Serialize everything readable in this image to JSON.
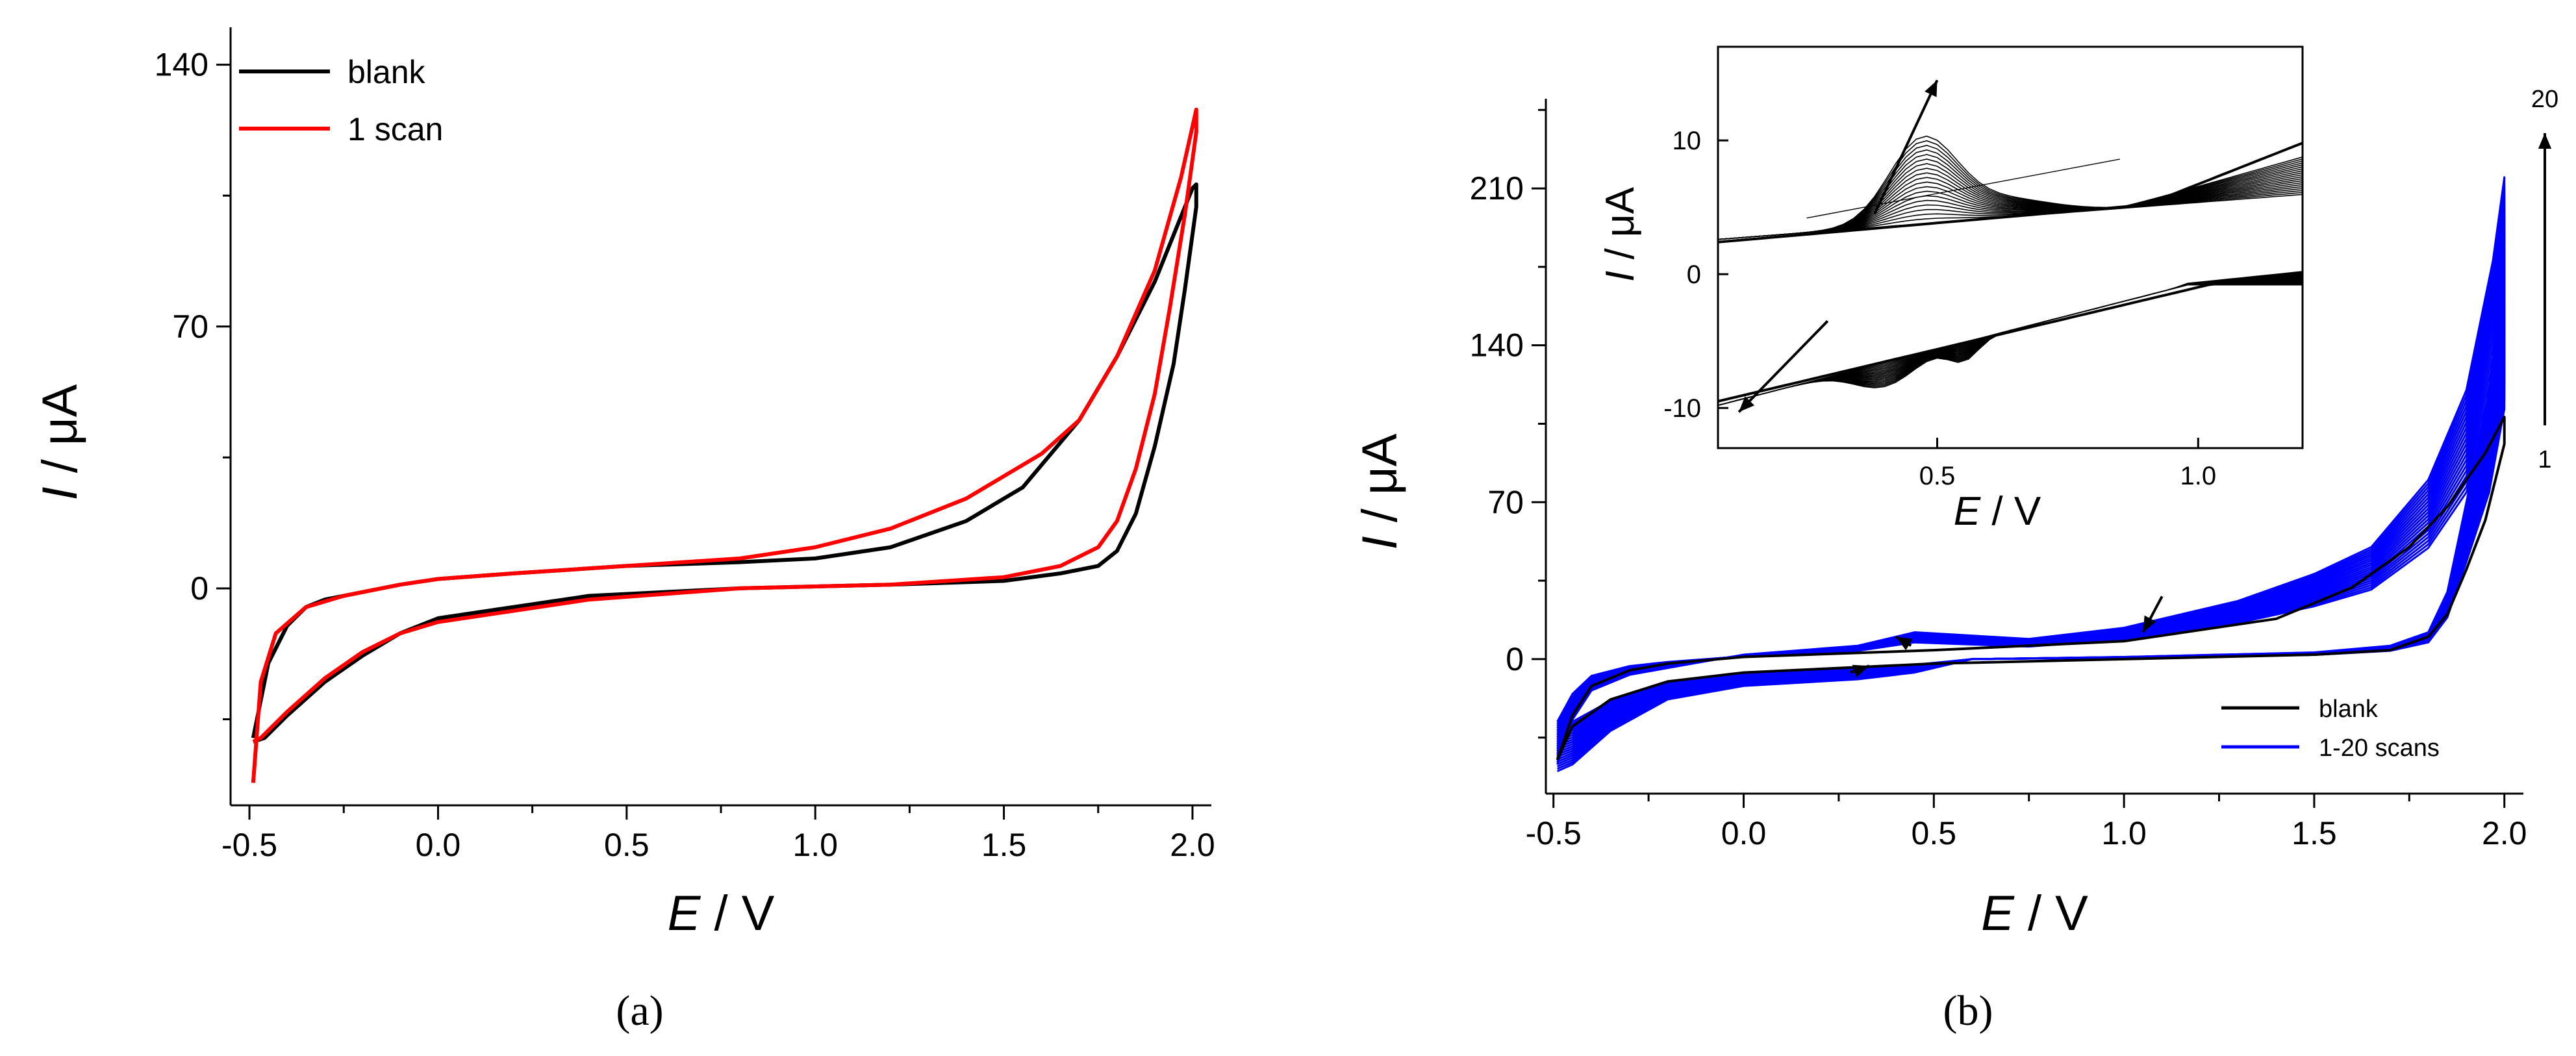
{
  "chart_data": [
    {
      "type": "line",
      "panel_label": "(a)",
      "xlabel_var": "E",
      "xlabel_unit": " / V",
      "ylabel_var": "I",
      "ylabel_unit": " / μA",
      "xlim": [
        -0.55,
        2.05
      ],
      "ylim": [
        -58,
        150
      ],
      "xticks": [
        -0.5,
        0.0,
        0.5,
        1.0,
        1.5,
        2.0
      ],
      "xtick_labels": [
        "-0.5",
        "0.0",
        "0.5",
        "1.0",
        "1.5",
        "2.0"
      ],
      "yticks": [
        0,
        70,
        140
      ],
      "ytick_labels": [
        "0",
        "70",
        "140"
      ],
      "legend_position": "top-left",
      "series": [
        {
          "name": "blank",
          "color": "#000000",
          "x": [
            -0.49,
            -0.45,
            -0.4,
            -0.35,
            -0.3,
            -0.2,
            -0.1,
            0.0,
            0.2,
            0.5,
            0.8,
            1.0,
            1.2,
            1.4,
            1.55,
            1.7,
            1.8,
            1.9,
            1.96,
            2.0,
            2.01,
            2.01,
            1.98,
            1.95,
            1.9,
            1.85,
            1.8,
            1.75,
            1.65,
            1.5,
            1.2,
            0.8,
            0.4,
            0.2,
            0.0,
            -0.1,
            -0.2,
            -0.3,
            -0.4,
            -0.46,
            -0.49
          ],
          "y": [
            -40,
            -20,
            -10,
            -5,
            -3,
            -1,
            1,
            2.5,
            4,
            6,
            7,
            8,
            11,
            18,
            27,
            45,
            62,
            82,
            97,
            107,
            108,
            102,
            80,
            60,
            38,
            20,
            10,
            6,
            4,
            2,
            1,
            0,
            -2,
            -5,
            -8,
            -12,
            -18,
            -25,
            -34,
            -40,
            -41
          ]
        },
        {
          "name": "1 scan",
          "color": "#ff0000",
          "x": [
            -0.49,
            -0.47,
            -0.43,
            -0.35,
            -0.25,
            -0.1,
            0.0,
            0.2,
            0.5,
            0.8,
            1.0,
            1.2,
            1.4,
            1.55,
            1.6,
            1.7,
            1.8,
            1.9,
            1.97,
            2.01,
            2.01,
            1.98,
            1.94,
            1.9,
            1.85,
            1.8,
            1.75,
            1.65,
            1.5,
            1.2,
            0.8,
            0.4,
            0.2,
            0.0,
            -0.1,
            -0.2,
            -0.3,
            -0.4,
            -0.47,
            -0.49
          ],
          "y": [
            -52,
            -25,
            -12,
            -5,
            -2,
            1,
            2.5,
            4,
            6,
            8,
            11,
            16,
            24,
            33,
            36,
            45,
            62,
            85,
            110,
            128,
            122,
            100,
            75,
            52,
            32,
            18,
            11,
            6,
            3,
            1,
            0,
            -3,
            -6,
            -9,
            -12,
            -17,
            -24,
            -33,
            -40,
            -41
          ]
        }
      ]
    },
    {
      "type": "line",
      "panel_label": "(b)",
      "xlabel_var": "E",
      "xlabel_unit": " / V",
      "ylabel_var": "I",
      "ylabel_unit": " / μA",
      "xlim": [
        -0.52,
        2.05
      ],
      "ylim": [
        -60,
        250
      ],
      "xticks": [
        -0.5,
        0.0,
        0.5,
        1.0,
        1.5,
        2.0
      ],
      "xtick_labels": [
        "-0.5",
        "0.0",
        "0.5",
        "1.0",
        "1.5",
        "2.0"
      ],
      "yticks": [
        0,
        70,
        140,
        210
      ],
      "ytick_labels": [
        "0",
        "70",
        "140",
        "210"
      ],
      "legend_position": "bottom-right",
      "scan_arrow_top": "20",
      "scan_arrow_bottom": "1",
      "series": [
        {
          "name": "blank",
          "color": "#000000",
          "x": [
            -0.49,
            -0.45,
            -0.4,
            -0.3,
            -0.2,
            0.0,
            0.5,
            1.0,
            1.4,
            1.6,
            1.75,
            1.85,
            1.95,
            2.0,
            2.0,
            1.95,
            1.9,
            1.85,
            1.8,
            1.7,
            1.5,
            1.0,
            0.5,
            0.0,
            -0.2,
            -0.35,
            -0.45,
            -0.49
          ],
          "y": [
            -45,
            -25,
            -12,
            -5,
            -2,
            1,
            4,
            8,
            18,
            32,
            50,
            68,
            92,
            108,
            96,
            62,
            40,
            20,
            10,
            4,
            2,
            0,
            -2,
            -6,
            -10,
            -18,
            -30,
            -45
          ]
        },
        {
          "name": "1-20 scans",
          "color": "#0000ff",
          "x": [
            -0.49,
            -0.45,
            -0.4,
            -0.3,
            -0.2,
            0.0,
            0.3,
            0.45,
            0.55,
            0.75,
            1.0,
            1.3,
            1.5,
            1.65,
            1.8,
            1.9,
            1.97,
            2.0,
            2.0,
            1.96,
            1.9,
            1.85,
            1.8,
            1.7,
            1.5,
            1.0,
            0.6,
            0.45,
            0.3,
            0.0,
            -0.2,
            -0.35,
            -0.45,
            -0.49
          ],
          "y": [
            -45,
            -25,
            -12,
            -5,
            -2,
            2,
            6,
            12,
            11,
            9,
            14,
            26,
            38,
            50,
            80,
            120,
            178,
            215,
            180,
            120,
            70,
            30,
            12,
            6,
            3,
            1,
            0,
            -4,
            -7,
            -10,
            -16,
            -30,
            -45,
            -48
          ]
        }
      ],
      "inset": {
        "xlabel_var": "E",
        "xlabel_unit": " / V",
        "ylabel_var": "I",
        "ylabel_unit": " / μA",
        "xlim": [
          0.08,
          1.2
        ],
        "ylim": [
          -13,
          17
        ],
        "xticks": [
          0.5,
          1.0
        ],
        "xtick_labels": [
          "0.5",
          "1.0"
        ],
        "yticks": [
          -10,
          0,
          10
        ],
        "ytick_labels": [
          "-10",
          "0",
          "10"
        ]
      }
    }
  ]
}
